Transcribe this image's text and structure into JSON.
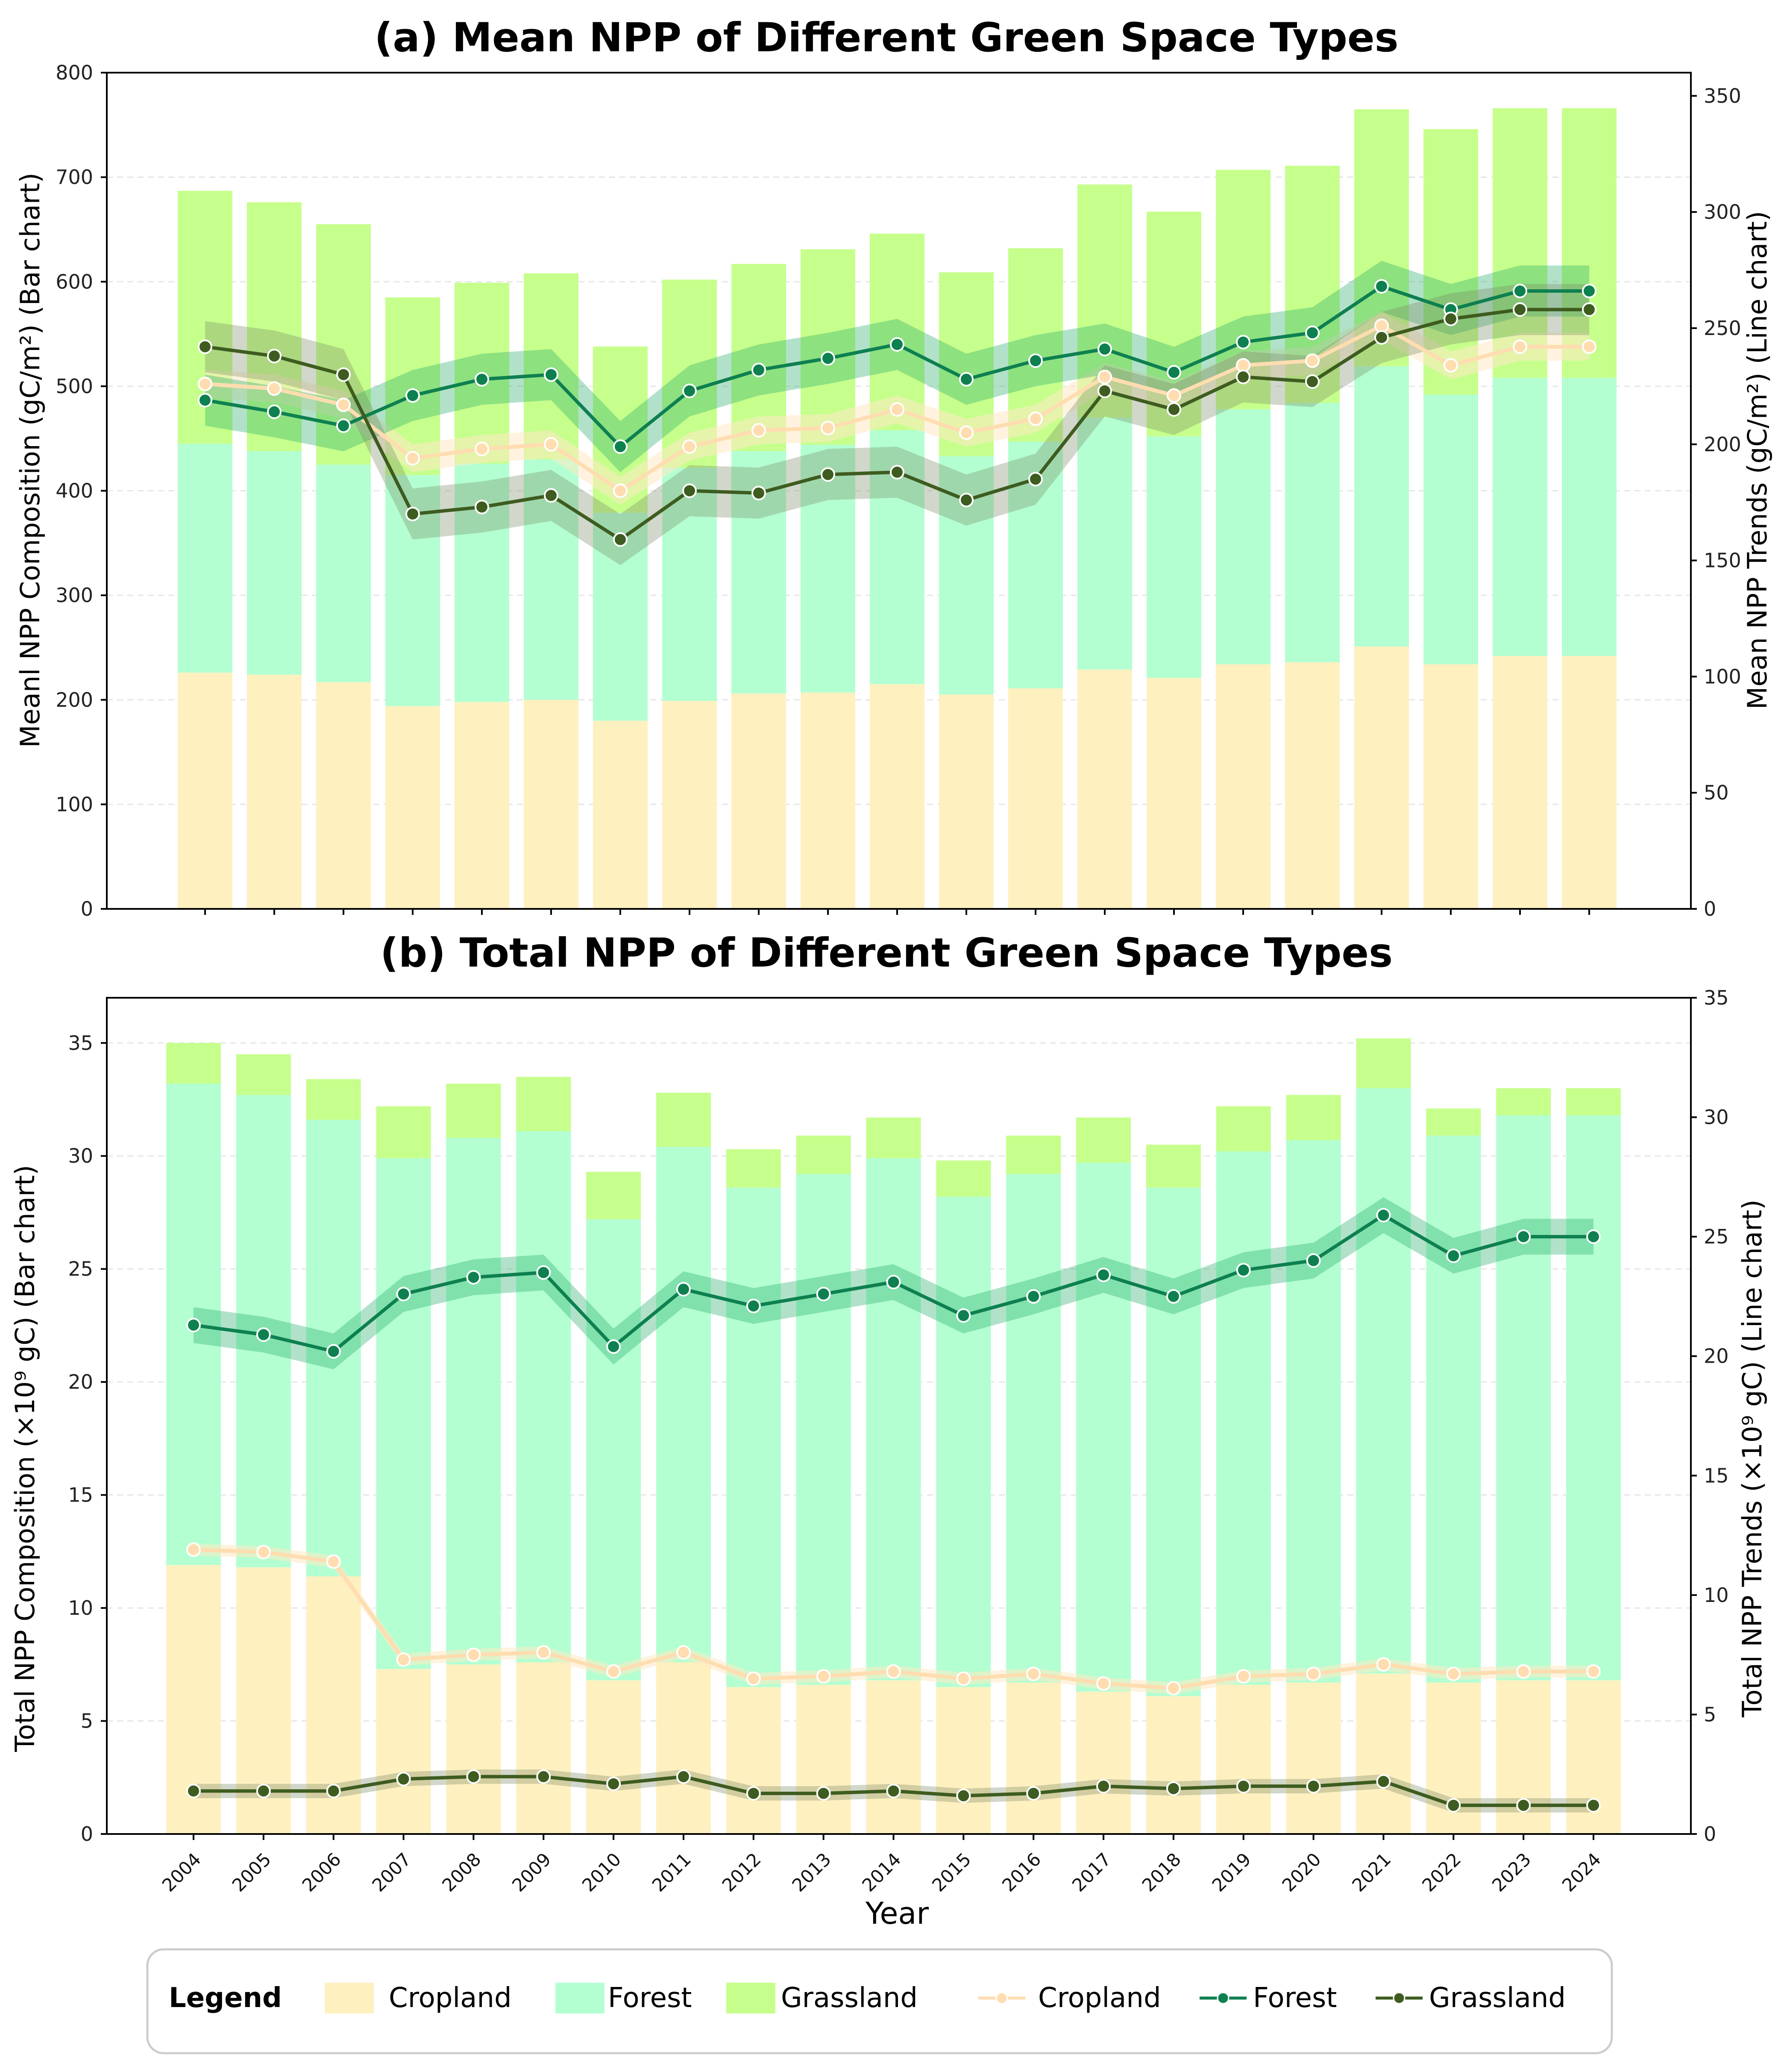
{
  "colors": {
    "cropland_bar": "#FFF0C0",
    "forest_bar": "#B3FFD1",
    "grassland_bar": "#C6FF8C",
    "cropland_line": "#FFDDB0",
    "forest_line": "#0E8050",
    "grassland_line": "#3E5C20",
    "grid": "#e6e6e6",
    "axis": "#000000"
  },
  "legend": {
    "title": "Legend",
    "bar_entries": [
      "Cropland",
      "Forest",
      "Grassland"
    ],
    "line_entries": [
      "Cropland",
      "Forest",
      "Grassland"
    ]
  },
  "chart_data": [
    {
      "type": "bar",
      "stacked": true,
      "title": "(a) Mean NPP of Different Green Space Types",
      "xlabel": "",
      "ylabel": "Meanl NPP Composition (gC/m²) (Bar chart)",
      "y2label": "Mean NPP Trends (gC/m²) (Line chart)",
      "categories": [
        "2004",
        "2005",
        "2006",
        "2007",
        "2008",
        "2009",
        "2010",
        "2011",
        "2012",
        "2013",
        "2014",
        "2015",
        "2016",
        "2017",
        "2018",
        "2019",
        "2020",
        "2021",
        "2022",
        "2023",
        "2024"
      ],
      "ylim": [
        0,
        800
      ],
      "yticks": [
        0,
        100,
        200,
        300,
        400,
        500,
        600,
        700,
        800
      ],
      "y2lim": [
        0,
        360
      ],
      "y2ticks": [
        0,
        50,
        100,
        150,
        200,
        250,
        300,
        350
      ],
      "grid": true,
      "bar_series": [
        {
          "name": "Cropland",
          "values": [
            226,
            224,
            217,
            194,
            198,
            200,
            180,
            199,
            206,
            207,
            215,
            205,
            211,
            229,
            221,
            234,
            236,
            251,
            234,
            242,
            242
          ]
        },
        {
          "name": "Forest",
          "values": [
            219,
            214,
            208,
            221,
            228,
            230,
            199,
            223,
            232,
            237,
            243,
            228,
            236,
            241,
            231,
            244,
            248,
            268,
            258,
            266,
            266
          ]
        },
        {
          "name": "Grassland",
          "values": [
            242,
            238,
            230,
            170,
            173,
            178,
            159,
            180,
            179,
            187,
            188,
            176,
            185,
            223,
            215,
            229,
            227,
            246,
            254,
            258,
            258
          ]
        }
      ],
      "line_series": [
        {
          "name": "Cropland",
          "values": [
            226,
            224,
            217,
            194,
            198,
            200,
            180,
            199,
            206,
            207,
            215,
            205,
            211,
            229,
            221,
            234,
            236,
            251,
            234,
            242,
            242
          ],
          "band": 6
        },
        {
          "name": "Forest",
          "values": [
            219,
            214,
            208,
            221,
            228,
            230,
            199,
            223,
            232,
            237,
            243,
            228,
            236,
            241,
            231,
            244,
            248,
            268,
            258,
            266,
            266
          ],
          "band": 11
        },
        {
          "name": "Grassland",
          "values": [
            242,
            238,
            230,
            170,
            173,
            178,
            159,
            180,
            179,
            187,
            188,
            176,
            185,
            223,
            215,
            229,
            227,
            246,
            254,
            258,
            258
          ],
          "band": 11
        }
      ]
    },
    {
      "type": "bar",
      "stacked": true,
      "title": "(b) Total NPP of Different Green Space Types",
      "xlabel": "Year",
      "ylabel": "Total NPP Composition (×10⁹ gC) (Bar chart)",
      "y2label": "Total NPP Trends  (×10⁹ gC) (Line chart)",
      "categories": [
        "2004",
        "2005",
        "2006",
        "2007",
        "2008",
        "2009",
        "2010",
        "2011",
        "2012",
        "2013",
        "2014",
        "2015",
        "2016",
        "2017",
        "2018",
        "2019",
        "2020",
        "2021",
        "2022",
        "2023",
        "2024"
      ],
      "ylim": [
        0,
        37
      ],
      "yticks": [
        0,
        5,
        10,
        15,
        20,
        25,
        30,
        35
      ],
      "y2lim": [
        0,
        35
      ],
      "y2ticks": [
        0,
        5,
        10,
        15,
        20,
        25,
        30,
        35
      ],
      "grid": true,
      "bar_series": [
        {
          "name": "Cropland",
          "values": [
            11.9,
            11.8,
            11.4,
            7.3,
            7.5,
            7.6,
            6.8,
            7.6,
            6.5,
            6.6,
            6.8,
            6.5,
            6.7,
            6.3,
            6.1,
            6.6,
            6.7,
            7.1,
            6.7,
            6.8,
            6.8
          ]
        },
        {
          "name": "Forest",
          "values": [
            21.3,
            20.9,
            20.2,
            22.6,
            23.3,
            23.5,
            20.4,
            22.8,
            22.1,
            22.6,
            23.1,
            21.7,
            22.5,
            23.4,
            22.5,
            23.6,
            24.0,
            25.9,
            24.2,
            25.0,
            25.0
          ]
        },
        {
          "name": "Grassland",
          "values": [
            1.8,
            1.8,
            1.8,
            2.3,
            2.4,
            2.4,
            2.1,
            2.4,
            1.7,
            1.7,
            1.8,
            1.6,
            1.7,
            2.0,
            1.9,
            2.0,
            2.0,
            2.2,
            1.2,
            1.2,
            1.2
          ]
        }
      ],
      "line_series": [
        {
          "name": "Cropland",
          "values": [
            11.9,
            11.8,
            11.4,
            7.3,
            7.5,
            7.6,
            6.8,
            7.6,
            6.5,
            6.6,
            6.8,
            6.5,
            6.7,
            6.3,
            6.1,
            6.6,
            6.7,
            7.1,
            6.7,
            6.8,
            6.8
          ],
          "band": 0.25
        },
        {
          "name": "Forest",
          "values": [
            21.3,
            20.9,
            20.2,
            22.6,
            23.3,
            23.5,
            20.4,
            22.8,
            22.1,
            22.6,
            23.1,
            21.7,
            22.5,
            23.4,
            22.5,
            23.6,
            24.0,
            25.9,
            24.2,
            25.0,
            25.0
          ],
          "band": 0.75
        },
        {
          "name": "Grassland",
          "values": [
            1.8,
            1.8,
            1.8,
            2.3,
            2.4,
            2.4,
            2.1,
            2.4,
            1.7,
            1.7,
            1.8,
            1.6,
            1.7,
            2.0,
            1.9,
            2.0,
            2.0,
            2.2,
            1.2,
            1.2,
            1.2
          ],
          "band": 0.3
        }
      ]
    }
  ]
}
